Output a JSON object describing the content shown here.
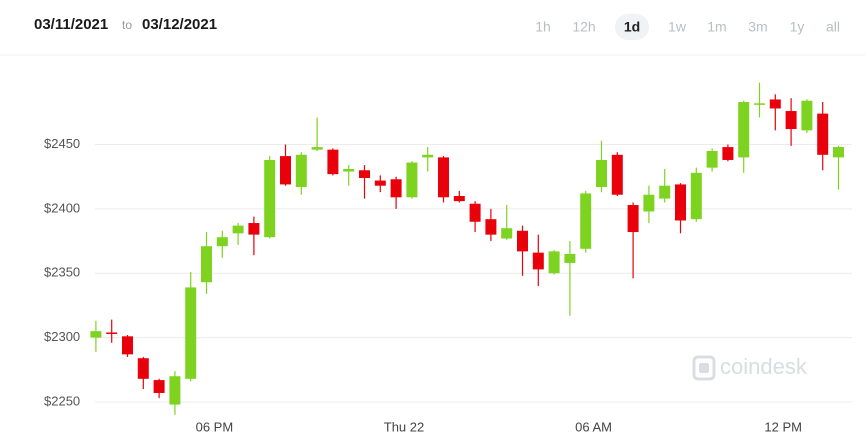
{
  "header": {
    "from": "03/11/2021",
    "to_word": "to",
    "to": "03/12/2021",
    "ranges": [
      "1h",
      "12h",
      "1d",
      "1w",
      "1m",
      "3m",
      "1y",
      "all"
    ],
    "selected_range": "1d"
  },
  "watermark": "coindesk",
  "chart_data": {
    "type": "candlestick",
    "categories": [
      null,
      null,
      null,
      null,
      null,
      null,
      null,
      null,
      "06 PM",
      null,
      null,
      null,
      null,
      null,
      null,
      null,
      null,
      null,
      null,
      null,
      "Thu 22",
      null,
      null,
      null,
      null,
      null,
      null,
      null,
      null,
      null,
      null,
      null,
      "06 AM",
      null,
      null,
      null,
      null,
      null,
      null,
      null,
      null,
      null,
      null,
      null,
      "12 PM",
      null,
      null,
      null
    ],
    "open": [
      2300,
      2304,
      2301,
      2284,
      2267,
      2248,
      2268,
      2343,
      2371,
      2381,
      2389,
      2378,
      2441,
      2417,
      2446,
      2446,
      2429,
      2430,
      2422,
      2423,
      2409,
      2440,
      2440,
      2410,
      2404,
      2392,
      2377,
      2383,
      2366,
      2350,
      2358,
      2369,
      2417,
      2442,
      2403,
      2398,
      2408,
      2419,
      2392,
      2432,
      2448,
      2440,
      2481,
      2485,
      2476,
      2461,
      2474,
      2440
    ],
    "high": [
      2313,
      2314,
      2302,
      2285,
      2268,
      2274,
      2351,
      2382,
      2383,
      2389,
      2394,
      2441,
      2450,
      2444,
      2471,
      2447,
      2434,
      2434,
      2426,
      2425,
      2437,
      2448,
      2441,
      2414,
      2406,
      2400,
      2403,
      2387,
      2380,
      2368,
      2375,
      2414,
      2453,
      2444,
      2405,
      2418,
      2431,
      2420,
      2432,
      2447,
      2450,
      2484,
      2498,
      2489,
      2486,
      2485,
      2483,
      2449
    ],
    "low": [
      2289,
      2296,
      2285,
      2260,
      2253,
      2240,
      2266,
      2334,
      2362,
      2372,
      2364,
      2377,
      2418,
      2411,
      2445,
      2426,
      2418,
      2408,
      2413,
      2400,
      2408,
      2429,
      2405,
      2405,
      2382,
      2375,
      2376,
      2348,
      2340,
      2349,
      2317,
      2366,
      2413,
      2410,
      2346,
      2389,
      2405,
      2381,
      2390,
      2429,
      2437,
      2428,
      2471,
      2461,
      2449,
      2459,
      2430,
      2415
    ],
    "close": [
      2305,
      2303,
      2287,
      2268,
      2257,
      2270,
      2339,
      2371,
      2378,
      2387,
      2380,
      2438,
      2419,
      2442,
      2448,
      2427,
      2431,
      2424,
      2418,
      2409,
      2436,
      2442,
      2409,
      2406,
      2390,
      2380,
      2385,
      2367,
      2353,
      2367,
      2365,
      2412,
      2438,
      2411,
      2382,
      2411,
      2418,
      2391,
      2428,
      2445,
      2438,
      2483,
      2482,
      2478,
      2462,
      2484,
      2442,
      2448
    ],
    "up_color": "#7ed321",
    "down_color": "#e8000b",
    "ylim": [
      2236,
      2504
    ],
    "yticks": [
      {
        "value": 2250,
        "label": "$2250"
      },
      {
        "value": 2300,
        "label": "$2300"
      },
      {
        "value": 2350,
        "label": "$2350"
      },
      {
        "value": 2400,
        "label": "$2400"
      },
      {
        "value": 2450,
        "label": "$2450"
      }
    ],
    "grid": true
  }
}
